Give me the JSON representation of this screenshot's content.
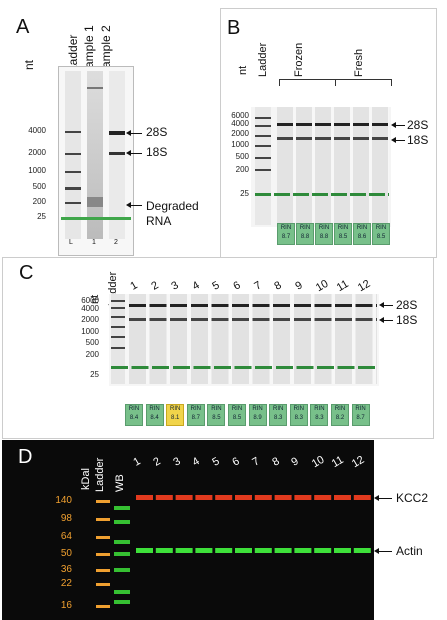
{
  "panelA": {
    "letter": "A",
    "unit": "nt",
    "lanes": [
      "Ladder",
      "Sample 1",
      "Sample 2"
    ],
    "markers": [
      "4000",
      "2000",
      "1000",
      "500",
      "200",
      "25"
    ],
    "bottom": [
      "L",
      "1",
      "2"
    ],
    "annot": {
      "s28": "28S",
      "s18": "18S",
      "deg1": "Degraded",
      "deg2": "RNA"
    }
  },
  "panelB": {
    "letter": "B",
    "unit": "nt",
    "ladder": "Ladder",
    "frozen": "Frozen",
    "fresh": "Fresh",
    "markers": [
      "6000",
      "4000",
      "2000",
      "1000",
      "500",
      "200",
      "25"
    ],
    "annot": {
      "s28": "28S",
      "s18": "18S"
    },
    "rin_label": "RIN",
    "rin": [
      "8.7",
      "8.8",
      "8.8",
      "8.5",
      "8.6",
      "8.5"
    ]
  },
  "panelC": {
    "letter": "C",
    "unit": "nt",
    "ladder": "Ladder",
    "lanes": [
      "1",
      "2",
      "3",
      "4",
      "5",
      "6",
      "7",
      "8",
      "9",
      "10",
      "11",
      "12"
    ],
    "markers": [
      "6000",
      "4000",
      "2000",
      "1000",
      "500",
      "200",
      "25"
    ],
    "annot": {
      "s28": "28S",
      "s18": "18S"
    },
    "rin_label": "RIN",
    "rin": [
      "8.4",
      "8.4",
      "8.1",
      "8.7",
      "8.5",
      "8.5",
      "8.9",
      "8.3",
      "8.3",
      "8.3",
      "8.2",
      "8.7"
    ],
    "highlight_color": "#f1d44a"
  },
  "panelD": {
    "letter": "D",
    "unit": "kDal",
    "ladder": "Ladder",
    "wb": "WB",
    "lanes": [
      "1",
      "2",
      "3",
      "4",
      "5",
      "6",
      "7",
      "8",
      "9",
      "10",
      "11",
      "12"
    ],
    "markers": [
      "140",
      "98",
      "64",
      "50",
      "36",
      "22",
      "16"
    ],
    "annot": {
      "kcc2": "KCC2",
      "actin": "Actin"
    },
    "marker_color": "#f0a030",
    "red_band": "#e23a1e",
    "green_band": "#3ee03a"
  }
}
